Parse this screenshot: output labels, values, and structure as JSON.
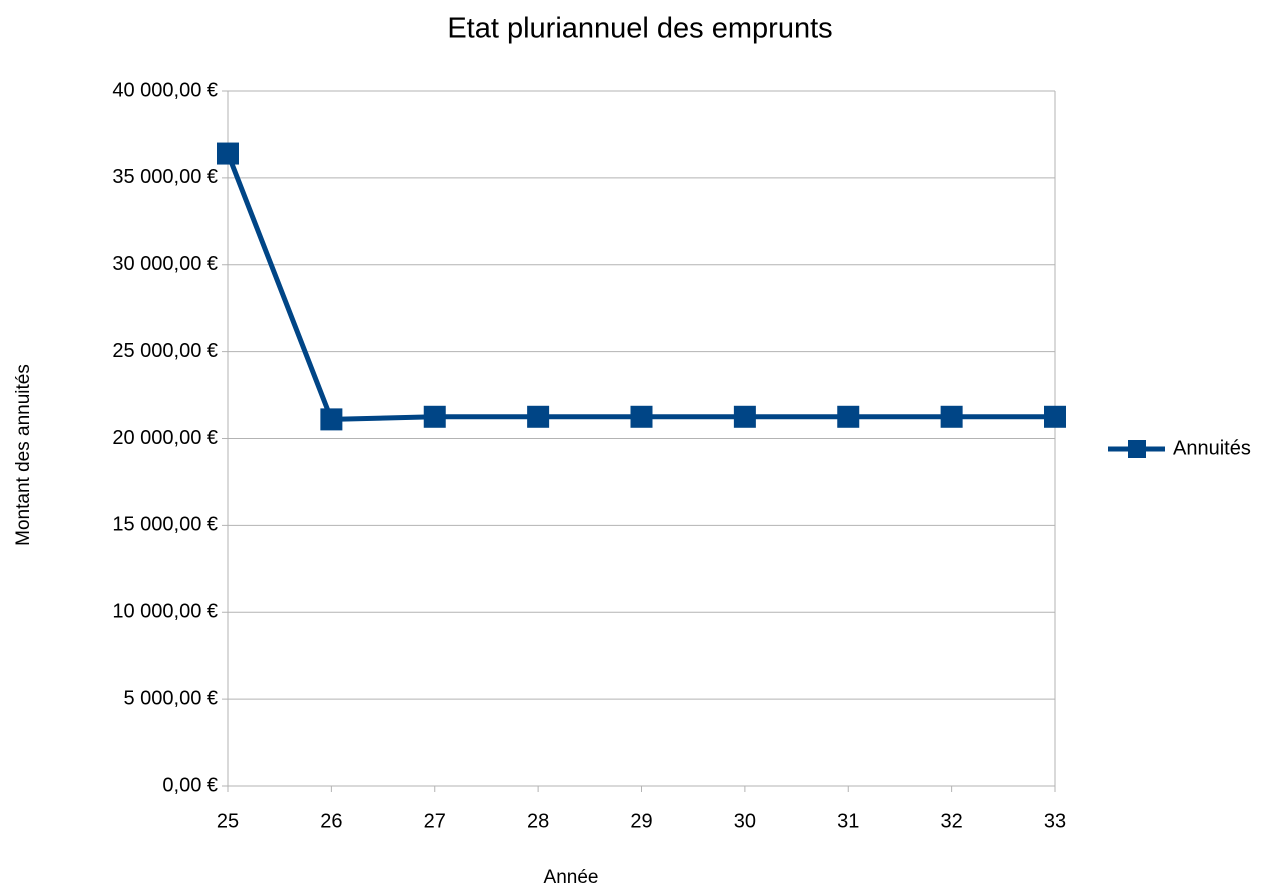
{
  "chart_data": {
    "type": "line",
    "title": "Etat pluriannuel des emprunts",
    "xlabel": "Année",
    "ylabel": "Montant des annuités",
    "x": [
      25,
      26,
      27,
      28,
      29,
      30,
      31,
      32,
      33
    ],
    "series": [
      {
        "name": "Annuités",
        "color": "#004586",
        "values": [
          36400,
          21100,
          21250,
          21250,
          21250,
          21250,
          21250,
          21250,
          21250
        ]
      }
    ],
    "xlim": [
      25,
      33
    ],
    "xticks": [
      25,
      26,
      27,
      28,
      29,
      30,
      31,
      32,
      33
    ],
    "ylim": [
      0,
      40000
    ],
    "yticks": [
      {
        "value": 0,
        "label": "0,00 €"
      },
      {
        "value": 5000,
        "label": "5 000,00 €"
      },
      {
        "value": 10000,
        "label": "10 000,00 €"
      },
      {
        "value": 15000,
        "label": "15 000,00 €"
      },
      {
        "value": 20000,
        "label": "20 000,00 €"
      },
      {
        "value": 25000,
        "label": "25 000,00 €"
      },
      {
        "value": 30000,
        "label": "30 000,00 €"
      },
      {
        "value": 35000,
        "label": "35 000,00 €"
      },
      {
        "value": 40000,
        "label": "40 000,00 €"
      }
    ],
    "grid": true,
    "legend": "right"
  }
}
